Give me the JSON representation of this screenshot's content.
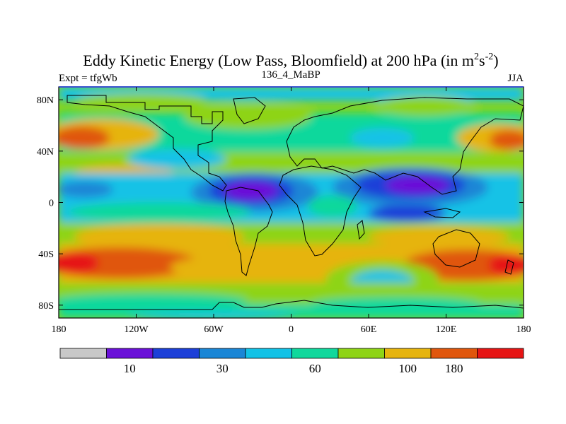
{
  "title": {
    "main": "Eddy Kinetic Energy (Low Pass, Bloomfield) at 200 hPa (in m",
    "sup1": "2",
    "mid": "s",
    "sup2": "-2",
    "close": ")"
  },
  "left_label": "Expt = tfgWb",
  "center_label": "136_4_MaBP",
  "right_label": "JJA",
  "map": {
    "lon_range": [
      -180,
      180
    ],
    "lat_range": [
      -90,
      90
    ],
    "lon_ticks": [
      {
        "value": -180,
        "label": "180"
      },
      {
        "value": -120,
        "label": "120W"
      },
      {
        "value": -60,
        "label": "60W"
      },
      {
        "value": 0,
        "label": "0"
      },
      {
        "value": 60,
        "label": "60E"
      },
      {
        "value": 120,
        "label": "120E"
      },
      {
        "value": 180,
        "label": "180"
      }
    ],
    "lat_ticks": [
      {
        "value": 80,
        "label": "80N"
      },
      {
        "value": 40,
        "label": "40N"
      },
      {
        "value": 0,
        "label": "0"
      },
      {
        "value": -40,
        "label": "40S"
      },
      {
        "value": -80,
        "label": "80S"
      }
    ]
  },
  "colorbar": {
    "colors": [
      "#c8c8c8",
      "#6a10d8",
      "#1c3fd8",
      "#1a86d6",
      "#12c2e6",
      "#10d89c",
      "#8ed416",
      "#e6b40e",
      "#e0560c",
      "#e61414"
    ],
    "labels": [
      {
        "text": "10",
        "boundary": 2
      },
      {
        "text": "30",
        "boundary": 4
      },
      {
        "text": "60",
        "boundary": 6
      },
      {
        "text": "100",
        "boundary": 8
      },
      {
        "text": "180",
        "boundary": 9
      }
    ]
  }
}
